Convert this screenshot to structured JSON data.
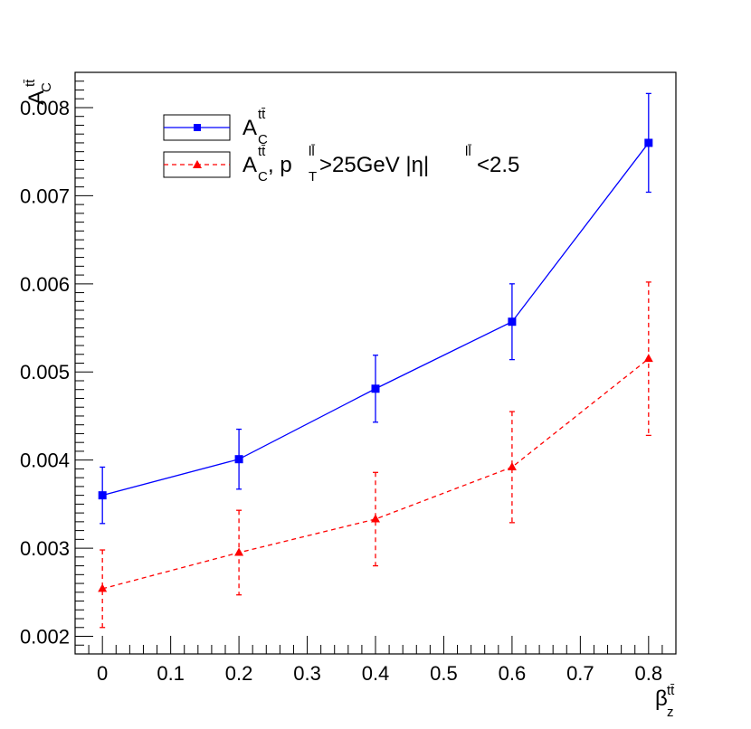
{
  "chart_data": {
    "type": "line",
    "xlim": [
      -0.04,
      0.84
    ],
    "ylim": [
      0.0018,
      0.0084
    ],
    "x_ticks": [
      "0",
      "0.1",
      "0.2",
      "0.3",
      "0.4",
      "0.5",
      "0.6",
      "0.7",
      "0.8"
    ],
    "y_ticks": [
      "0.002",
      "0.003",
      "0.004",
      "0.005",
      "0.006",
      "0.007",
      "0.008"
    ],
    "xlabel": {
      "base": "β",
      "sup": "tt̄",
      "sub": "z"
    },
    "ylabel": {
      "base": "A",
      "sup": "tt̄",
      "sub": "C"
    },
    "grid": false,
    "legend_position": "top-left",
    "series": [
      {
        "legend": {
          "base": "A",
          "sup": "tt̄",
          "sub": "C",
          "rest": ""
        },
        "color": "#0000ff",
        "marker": "square",
        "linestyle": "solid",
        "x": [
          0,
          0.2,
          0.4,
          0.6,
          0.8
        ],
        "y": [
          0.0036,
          0.00401,
          0.00481,
          0.00557,
          0.0076
        ],
        "err": [
          0.00032,
          0.00034,
          0.00038,
          0.00043,
          0.00056
        ]
      },
      {
        "legend": {
          "base": "A",
          "sup": "tt̄",
          "sub": "C",
          "rest": ", p_T^{ll̄}>25GeV |η|^{ll̄}<2.5"
        },
        "color": "#ff0000",
        "marker": "triangle",
        "linestyle": "dashed",
        "x": [
          0,
          0.2,
          0.4,
          0.6,
          0.8
        ],
        "y": [
          0.00254,
          0.00295,
          0.00333,
          0.00392,
          0.00515
        ],
        "err": [
          0.00044,
          0.00048,
          0.00053,
          0.00063,
          0.00087
        ]
      }
    ]
  },
  "legend_text": {
    "entry1_base": "A",
    "entry1_sup": "tt̄",
    "entry1_sub": "C",
    "entry2_base": "A",
    "entry2_sup": "tt̄",
    "entry2_sub": "C",
    "entry2_p": ", p",
    "entry2_p_sub": "T",
    "entry2_p_sup": "ll̄",
    "entry2_mid": ">25GeV |η|",
    "entry2_eta_sup": "ll̄",
    "entry2_end": "<2.5"
  }
}
